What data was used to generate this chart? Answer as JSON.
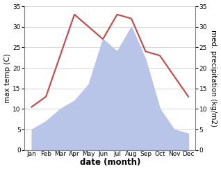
{
  "months": [
    "Jan",
    "Feb",
    "Mar",
    "Apr",
    "May",
    "Jun",
    "Jul",
    "Aug",
    "Sep",
    "Oct",
    "Nov",
    "Dec"
  ],
  "temperature": [
    10.5,
    13.0,
    23.0,
    33.0,
    30.0,
    27.0,
    33.0,
    32.0,
    24.0,
    23.0,
    18.0,
    13.0
  ],
  "precipitation": [
    5.0,
    7.0,
    10.0,
    12.0,
    16.0,
    27.0,
    24.0,
    30.0,
    22.0,
    10.0,
    5.0,
    4.0
  ],
  "temp_color": "#c0504d",
  "precip_fill_color": "#b8c4e8",
  "precip_edge_color": "#b8c4e8",
  "ylim_left": [
    0,
    35
  ],
  "ylim_right": [
    0,
    35
  ],
  "yticks": [
    0,
    5,
    10,
    15,
    20,
    25,
    30,
    35
  ],
  "xlabel": "date (month)",
  "ylabel_left": "max temp (C)",
  "ylabel_right": "med. precipitation (kg/m2)",
  "bg_color": "#ffffff",
  "plot_bg_color": "#ffffff",
  "grid_color": "#d0d0d0",
  "tick_label_size": 6.5,
  "axis_label_size": 7.5,
  "xlabel_fontsize": 8.5,
  "temp_linewidth": 1.6,
  "spine_color": "#808080"
}
